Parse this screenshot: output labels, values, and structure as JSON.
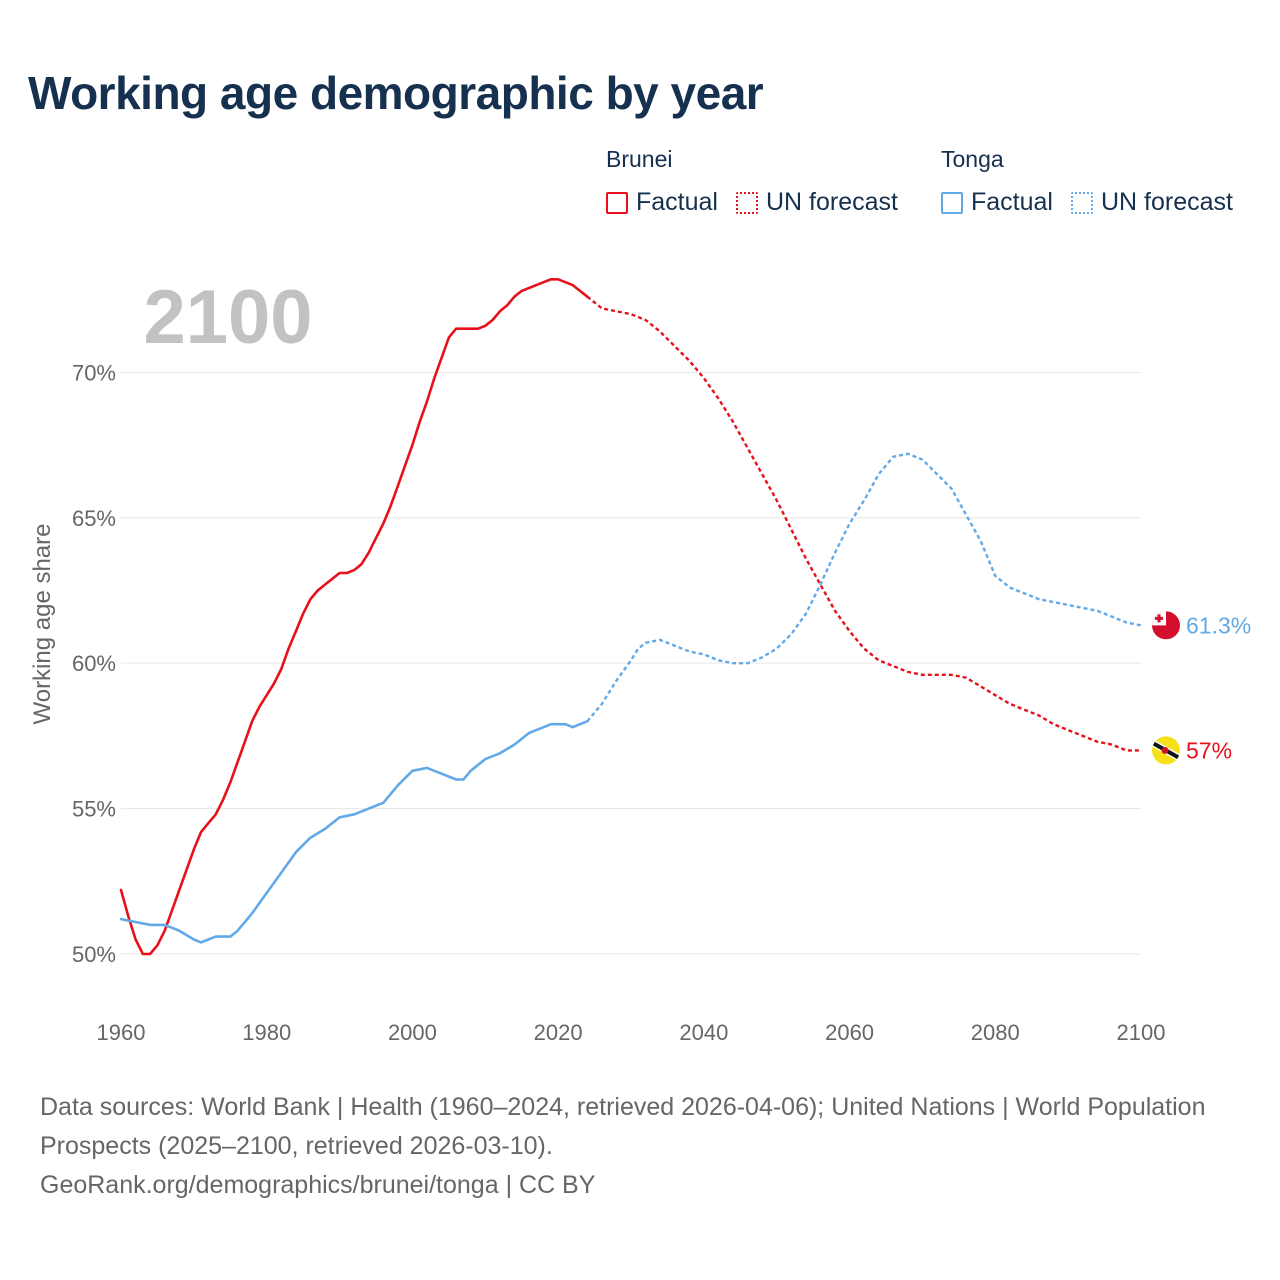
{
  "title": "Working age demographic by year",
  "legend": [
    {
      "group": "Brunei",
      "color": "#e8111b",
      "items": [
        {
          "label": "Factual",
          "style": "solid"
        },
        {
          "label": "UN forecast",
          "style": "dotted"
        }
      ]
    },
    {
      "group": "Tonga",
      "color": "#62a9e8",
      "items": [
        {
          "label": "Factual",
          "style": "solid"
        },
        {
          "label": "UN forecast",
          "style": "dotted"
        }
      ]
    }
  ],
  "footer": {
    "sources": "Data sources: World Bank | Health (1960–2024, retrieved 2026-04-06); United Nations | World Population Prospects (2025–2100, retrieved 2026-03-10).",
    "credit": "GeoRank.org/demographics/brunei/tonga | CC BY"
  },
  "chart_data": {
    "type": "line",
    "title": "Working age demographic by year",
    "year_label": "2100",
    "xlabel": "",
    "ylabel": "Working age share",
    "xlim": [
      1960,
      2100
    ],
    "ylim": [
      50,
      72.9
    ],
    "x_ticks": [
      1960,
      1980,
      2000,
      2020,
      2040,
      2060,
      2080,
      2100
    ],
    "y_ticks": [
      {
        "value": 50,
        "label": "50%"
      },
      {
        "value": 55,
        "label": "55%"
      },
      {
        "value": 60,
        "label": "60%"
      },
      {
        "value": 65,
        "label": "65%"
      },
      {
        "value": 70,
        "label": "70%"
      }
    ],
    "grid": true,
    "series": [
      {
        "name": "Brunei",
        "color": "#e8111b",
        "flag_icon": "brunei-flag-icon",
        "end_label": "57%",
        "factual": [
          [
            1960,
            52.2
          ],
          [
            1961,
            51.3
          ],
          [
            1962,
            50.5
          ],
          [
            1963,
            50.0
          ],
          [
            1964,
            50.0
          ],
          [
            1965,
            50.3
          ],
          [
            1966,
            50.8
          ],
          [
            1967,
            51.5
          ],
          [
            1968,
            52.2
          ],
          [
            1969,
            52.9
          ],
          [
            1970,
            53.6
          ],
          [
            1971,
            54.2
          ],
          [
            1972,
            54.5
          ],
          [
            1973,
            54.8
          ],
          [
            1974,
            55.3
          ],
          [
            1975,
            55.9
          ],
          [
            1976,
            56.6
          ],
          [
            1977,
            57.3
          ],
          [
            1978,
            58.0
          ],
          [
            1979,
            58.5
          ],
          [
            1980,
            58.9
          ],
          [
            1981,
            59.3
          ],
          [
            1982,
            59.8
          ],
          [
            1983,
            60.5
          ],
          [
            1984,
            61.1
          ],
          [
            1985,
            61.7
          ],
          [
            1986,
            62.2
          ],
          [
            1987,
            62.5
          ],
          [
            1988,
            62.7
          ],
          [
            1989,
            62.9
          ],
          [
            1990,
            63.1
          ],
          [
            1991,
            63.1
          ],
          [
            1992,
            63.2
          ],
          [
            1993,
            63.4
          ],
          [
            1994,
            63.8
          ],
          [
            1995,
            64.3
          ],
          [
            1996,
            64.8
          ],
          [
            1997,
            65.4
          ],
          [
            1998,
            66.1
          ],
          [
            1999,
            66.8
          ],
          [
            2000,
            67.5
          ],
          [
            2001,
            68.3
          ],
          [
            2002,
            69.0
          ],
          [
            2003,
            69.8
          ],
          [
            2004,
            70.5
          ],
          [
            2005,
            71.2
          ],
          [
            2006,
            71.5
          ],
          [
            2007,
            71.5
          ],
          [
            2008,
            71.5
          ],
          [
            2009,
            71.5
          ],
          [
            2010,
            71.6
          ],
          [
            2011,
            71.8
          ],
          [
            2012,
            72.1
          ],
          [
            2013,
            72.3
          ],
          [
            2014,
            72.6
          ],
          [
            2015,
            72.8
          ],
          [
            2016,
            72.9
          ],
          [
            2017,
            73.0
          ],
          [
            2018,
            73.1
          ],
          [
            2019,
            73.2
          ],
          [
            2020,
            73.2
          ],
          [
            2021,
            73.1
          ],
          [
            2022,
            73.0
          ],
          [
            2023,
            72.8
          ],
          [
            2024,
            72.6
          ]
        ],
        "forecast": [
          [
            2024,
            72.6
          ],
          [
            2025,
            72.4
          ],
          [
            2026,
            72.2
          ],
          [
            2028,
            72.1
          ],
          [
            2030,
            72.0
          ],
          [
            2032,
            71.8
          ],
          [
            2034,
            71.4
          ],
          [
            2036,
            70.9
          ],
          [
            2038,
            70.4
          ],
          [
            2040,
            69.8
          ],
          [
            2042,
            69.1
          ],
          [
            2044,
            68.3
          ],
          [
            2046,
            67.4
          ],
          [
            2048,
            66.5
          ],
          [
            2050,
            65.6
          ],
          [
            2052,
            64.6
          ],
          [
            2054,
            63.6
          ],
          [
            2056,
            62.7
          ],
          [
            2058,
            61.8
          ],
          [
            2060,
            61.1
          ],
          [
            2062,
            60.5
          ],
          [
            2064,
            60.1
          ],
          [
            2066,
            59.9
          ],
          [
            2068,
            59.7
          ],
          [
            2070,
            59.6
          ],
          [
            2072,
            59.6
          ],
          [
            2074,
            59.6
          ],
          [
            2076,
            59.5
          ],
          [
            2078,
            59.2
          ],
          [
            2080,
            58.9
          ],
          [
            2082,
            58.6
          ],
          [
            2084,
            58.4
          ],
          [
            2086,
            58.2
          ],
          [
            2088,
            57.9
          ],
          [
            2090,
            57.7
          ],
          [
            2092,
            57.5
          ],
          [
            2094,
            57.3
          ],
          [
            2096,
            57.2
          ],
          [
            2098,
            57.0
          ],
          [
            2100,
            57.0
          ]
        ]
      },
      {
        "name": "Tonga",
        "color": "#62a9e8",
        "flag_icon": "tonga-flag-icon",
        "end_label": "61.3%",
        "factual": [
          [
            1960,
            51.2
          ],
          [
            1962,
            51.1
          ],
          [
            1964,
            51.0
          ],
          [
            1966,
            51.0
          ],
          [
            1968,
            50.8
          ],
          [
            1970,
            50.5
          ],
          [
            1971,
            50.4
          ],
          [
            1972,
            50.5
          ],
          [
            1973,
            50.6
          ],
          [
            1974,
            50.6
          ],
          [
            1975,
            50.6
          ],
          [
            1976,
            50.8
          ],
          [
            1978,
            51.4
          ],
          [
            1980,
            52.1
          ],
          [
            1982,
            52.8
          ],
          [
            1984,
            53.5
          ],
          [
            1986,
            54.0
          ],
          [
            1988,
            54.3
          ],
          [
            1990,
            54.7
          ],
          [
            1992,
            54.8
          ],
          [
            1994,
            55.0
          ],
          [
            1996,
            55.2
          ],
          [
            1998,
            55.8
          ],
          [
            2000,
            56.3
          ],
          [
            2002,
            56.4
          ],
          [
            2004,
            56.2
          ],
          [
            2006,
            56.0
          ],
          [
            2007,
            56.0
          ],
          [
            2008,
            56.3
          ],
          [
            2010,
            56.7
          ],
          [
            2012,
            56.9
          ],
          [
            2014,
            57.2
          ],
          [
            2016,
            57.6
          ],
          [
            2018,
            57.8
          ],
          [
            2019,
            57.9
          ],
          [
            2020,
            57.9
          ],
          [
            2021,
            57.9
          ],
          [
            2022,
            57.8
          ],
          [
            2023,
            57.9
          ],
          [
            2024,
            58.0
          ]
        ],
        "forecast": [
          [
            2024,
            58.0
          ],
          [
            2026,
            58.6
          ],
          [
            2028,
            59.4
          ],
          [
            2030,
            60.1
          ],
          [
            2031,
            60.5
          ],
          [
            2032,
            60.7
          ],
          [
            2034,
            60.8
          ],
          [
            2036,
            60.6
          ],
          [
            2038,
            60.4
          ],
          [
            2040,
            60.3
          ],
          [
            2042,
            60.1
          ],
          [
            2044,
            60.0
          ],
          [
            2046,
            60.0
          ],
          [
            2048,
            60.2
          ],
          [
            2050,
            60.5
          ],
          [
            2052,
            61.0
          ],
          [
            2054,
            61.7
          ],
          [
            2056,
            62.7
          ],
          [
            2058,
            63.8
          ],
          [
            2060,
            64.8
          ],
          [
            2062,
            65.6
          ],
          [
            2064,
            66.5
          ],
          [
            2066,
            67.1
          ],
          [
            2068,
            67.2
          ],
          [
            2070,
            67.0
          ],
          [
            2072,
            66.5
          ],
          [
            2074,
            66.0
          ],
          [
            2076,
            65.1
          ],
          [
            2078,
            64.2
          ],
          [
            2080,
            63.0
          ],
          [
            2082,
            62.6
          ],
          [
            2084,
            62.4
          ],
          [
            2086,
            62.2
          ],
          [
            2088,
            62.1
          ],
          [
            2090,
            62.0
          ],
          [
            2092,
            61.9
          ],
          [
            2094,
            61.8
          ],
          [
            2096,
            61.6
          ],
          [
            2098,
            61.4
          ],
          [
            2100,
            61.3
          ]
        ]
      }
    ]
  }
}
